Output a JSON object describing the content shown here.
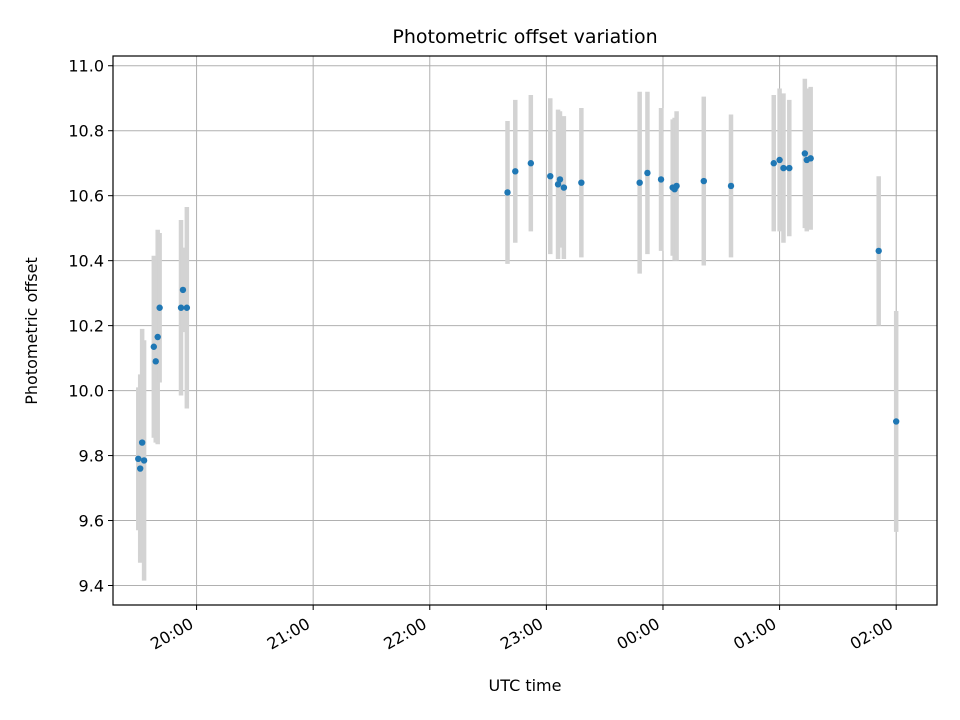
{
  "chart_data": {
    "type": "scatter",
    "title": "Photometric offset variation",
    "xlabel": "UTC time",
    "ylabel": "Photometric offset",
    "x_axis_type": "time",
    "x_base_date": "2000-01-01",
    "xlim": [
      "19:17",
      "02:21"
    ],
    "ylim": [
      9.34,
      11.03
    ],
    "x_ticks": [
      "20:00",
      "21:00",
      "22:00",
      "23:00",
      "00:00",
      "01:00",
      "02:00"
    ],
    "y_ticks": [
      9.4,
      9.6,
      9.8,
      10.0,
      10.2,
      10.4,
      10.6,
      10.8,
      11.0
    ],
    "y_tick_labels": [
      "9.4",
      "9.6",
      "9.8",
      "10.0",
      "10.2",
      "10.4",
      "10.6",
      "10.8",
      "11.0"
    ],
    "grid": true,
    "legend": "none",
    "colors": {
      "point": "#1f77b4",
      "errorbar": "#d3d3d3",
      "grid": "#b0b0b0"
    },
    "points": [
      {
        "t": "19:30",
        "y": 9.79,
        "err": 0.22
      },
      {
        "t": "19:31",
        "y": 9.76,
        "err": 0.29
      },
      {
        "t": "19:32",
        "y": 9.84,
        "err": 0.35
      },
      {
        "t": "19:33",
        "y": 9.785,
        "err": 0.37
      },
      {
        "t": "19:38",
        "y": 10.135,
        "err": 0.28
      },
      {
        "t": "19:39",
        "y": 10.09,
        "err": 0.25
      },
      {
        "t": "19:40",
        "y": 10.165,
        "err": 0.33
      },
      {
        "t": "19:41",
        "y": 10.255,
        "err": 0.23
      },
      {
        "t": "19:52",
        "y": 10.255,
        "err": 0.27
      },
      {
        "t": "19:53",
        "y": 10.31,
        "err": 0.13
      },
      {
        "t": "19:55",
        "y": 10.255,
        "err": 0.31
      },
      {
        "t": "22:40",
        "y": 10.61,
        "err": 0.22
      },
      {
        "t": "22:44",
        "y": 10.675,
        "err": 0.22
      },
      {
        "t": "22:52",
        "y": 10.7,
        "err": 0.21
      },
      {
        "t": "23:02",
        "y": 10.66,
        "err": 0.24
      },
      {
        "t": "23:06",
        "y": 10.635,
        "err": 0.23
      },
      {
        "t": "23:07",
        "y": 10.65,
        "err": 0.21
      },
      {
        "t": "23:09",
        "y": 10.625,
        "err": 0.22
      },
      {
        "t": "23:18",
        "y": 10.64,
        "err": 0.23
      },
      {
        "t": "23:48",
        "y": 10.64,
        "err": 0.28
      },
      {
        "t": "23:52",
        "y": 10.67,
        "err": 0.25
      },
      {
        "t": "23:59",
        "y": 10.65,
        "err": 0.22
      },
      {
        "t": "00:05",
        "y": 10.625,
        "err": 0.21
      },
      {
        "t": "00:06",
        "y": 10.62,
        "err": 0.22
      },
      {
        "t": "00:07",
        "y": 10.63,
        "err": 0.23
      },
      {
        "t": "00:21",
        "y": 10.645,
        "err": 0.26
      },
      {
        "t": "00:35",
        "y": 10.63,
        "err": 0.22
      },
      {
        "t": "00:57",
        "y": 10.7,
        "err": 0.21
      },
      {
        "t": "01:00",
        "y": 10.71,
        "err": 0.22
      },
      {
        "t": "01:02",
        "y": 10.685,
        "err": 0.23
      },
      {
        "t": "01:05",
        "y": 10.685,
        "err": 0.21
      },
      {
        "t": "01:13",
        "y": 10.73,
        "err": 0.23
      },
      {
        "t": "01:14",
        "y": 10.71,
        "err": 0.22
      },
      {
        "t": "01:16",
        "y": 10.715,
        "err": 0.22
      },
      {
        "t": "01:51",
        "y": 10.43,
        "err": 0.23
      },
      {
        "t": "02:00",
        "y": 9.905,
        "err": 0.34
      }
    ]
  }
}
